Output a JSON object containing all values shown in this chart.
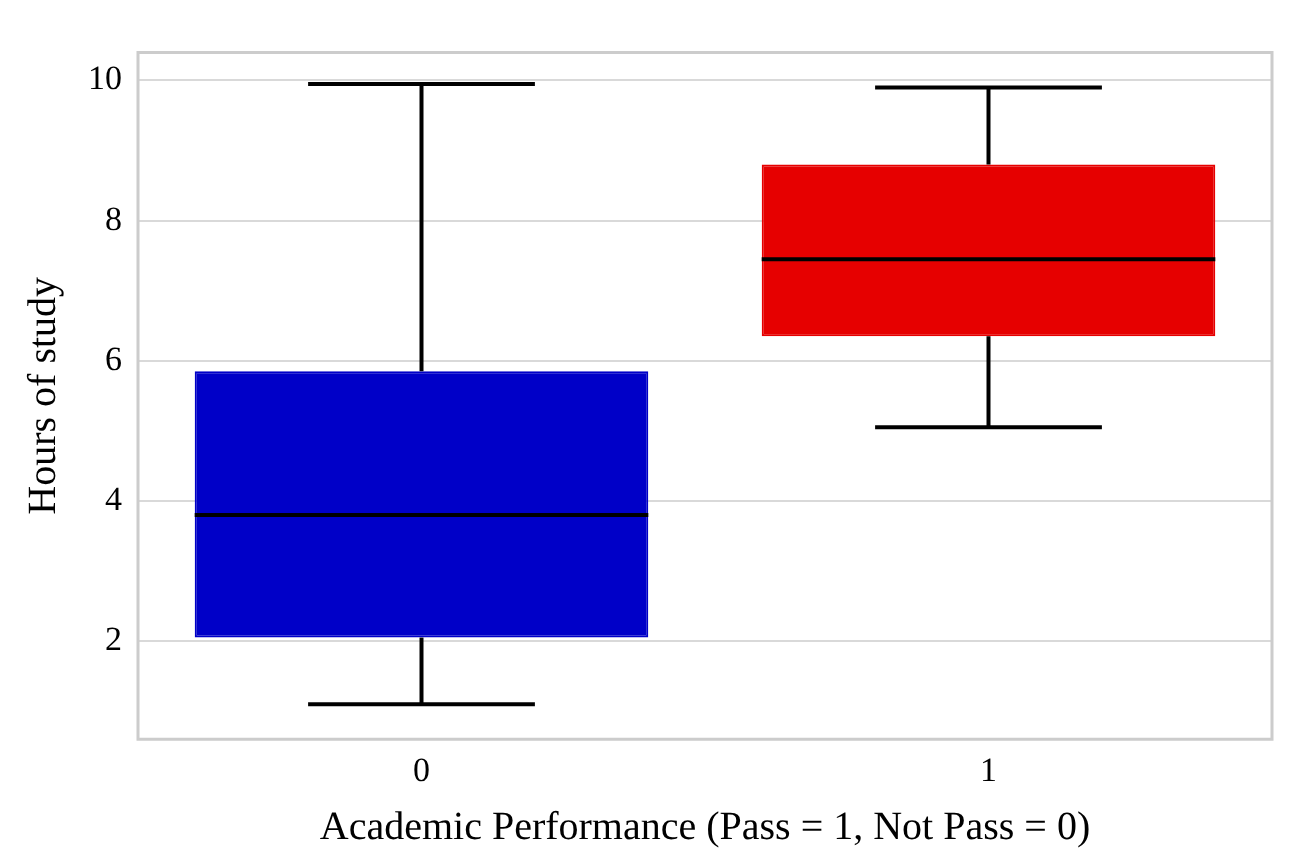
{
  "chart_data": {
    "type": "box",
    "xlabel": "Academic Performance (Pass = 1, Not Pass = 0)",
    "ylabel": "Hours of study",
    "categories": [
      "0",
      "1"
    ],
    "boxes": [
      {
        "low": 1.1,
        "q1": 2.05,
        "median": 3.8,
        "q3": 5.85,
        "high": 9.95
      },
      {
        "low": 5.05,
        "q1": 6.35,
        "median": 7.45,
        "q3": 8.8,
        "high": 9.9
      }
    ],
    "colors": [
      "#0000c8",
      "#e60000"
    ],
    "ylim": [
      0.6,
      10.4
    ],
    "yticks": [
      2,
      4,
      6,
      8,
      10
    ],
    "grid": "y",
    "legend": false
  }
}
